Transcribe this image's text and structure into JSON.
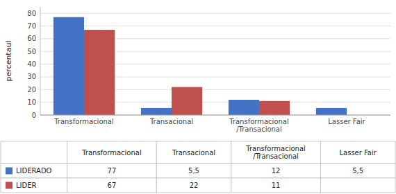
{
  "chart_data": {
    "type": "bar",
    "categories": [
      "Transformacional",
      "Transacional",
      "Transformacional\n/Transacional",
      "Lasser Fair"
    ],
    "series": [
      {
        "name": "LIDERADO",
        "color": "#4472C4",
        "values": [
          77,
          5.5,
          12,
          5.5
        ],
        "value_labels": [
          "77",
          "5,5",
          "12",
          "5,5"
        ]
      },
      {
        "name": "LIDER",
        "color": "#C0504D",
        "values": [
          67,
          22,
          11,
          0
        ],
        "value_labels": [
          "67",
          "22",
          "11",
          null
        ]
      }
    ],
    "ylabel": "percentaul",
    "ylim": [
      0,
      85
    ],
    "yticks": [
      0,
      10,
      20,
      30,
      40,
      50,
      60,
      70,
      80
    ],
    "grid": true
  }
}
